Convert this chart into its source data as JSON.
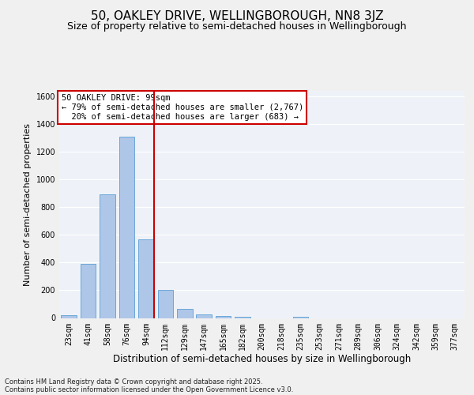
{
  "title": "50, OAKLEY DRIVE, WELLINGBOROUGH, NN8 3JZ",
  "subtitle": "Size of property relative to semi-detached houses in Wellingborough",
  "xlabel": "Distribution of semi-detached houses by size in Wellingborough",
  "ylabel": "Number of semi-detached properties",
  "footer_line1": "Contains HM Land Registry data © Crown copyright and database right 2025.",
  "footer_line2": "Contains public sector information licensed under the Open Government Licence v3.0.",
  "categories": [
    "23sqm",
    "41sqm",
    "58sqm",
    "76sqm",
    "94sqm",
    "112sqm",
    "129sqm",
    "147sqm",
    "165sqm",
    "182sqm",
    "200sqm",
    "218sqm",
    "235sqm",
    "253sqm",
    "271sqm",
    "289sqm",
    "306sqm",
    "324sqm",
    "342sqm",
    "359sqm",
    "377sqm"
  ],
  "values": [
    20,
    390,
    895,
    1310,
    570,
    200,
    65,
    27,
    15,
    8,
    0,
    0,
    8,
    0,
    0,
    0,
    0,
    0,
    0,
    0,
    0
  ],
  "bar_color": "#aec6e8",
  "bar_edge_color": "#5a9fd4",
  "vline_x_index": 4,
  "vline_color": "#cc0000",
  "property_size": "99sqm",
  "property_name": "50 OAKLEY DRIVE",
  "pct_smaller": 79,
  "n_smaller": 2767,
  "pct_larger": 20,
  "n_larger": 683,
  "annotation_box_color": "#cc0000",
  "ylim": [
    0,
    1640
  ],
  "yticks": [
    0,
    200,
    400,
    600,
    800,
    1000,
    1200,
    1400,
    1600
  ],
  "background_color": "#eef2f8",
  "grid_color": "#ffffff",
  "title_fontsize": 11,
  "subtitle_fontsize": 9,
  "xlabel_fontsize": 8.5,
  "ylabel_fontsize": 8,
  "tick_fontsize": 7,
  "footer_fontsize": 6,
  "annot_fontsize": 7.5
}
